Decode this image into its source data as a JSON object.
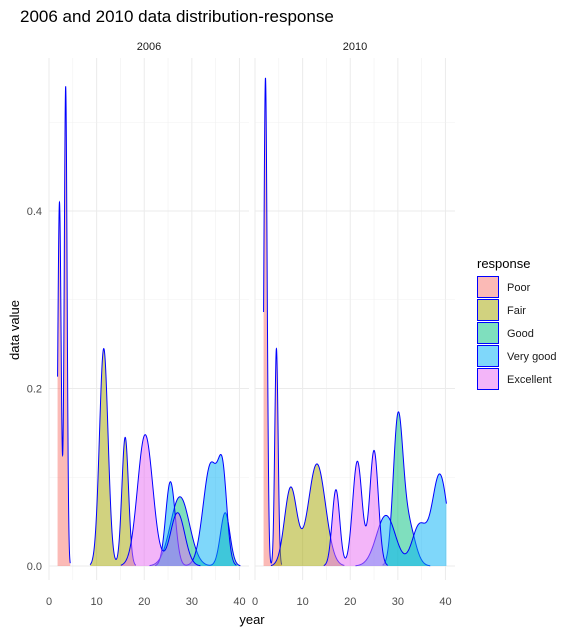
{
  "chart_data": {
    "type": "area",
    "title": "2006 and 2010 data distribution-response",
    "xlabel": "year",
    "ylabel": "data value",
    "xlim": [
      0,
      42
    ],
    "ylim": [
      0,
      0.55
    ],
    "x_ticks": [
      0,
      10,
      20,
      30,
      40
    ],
    "y_ticks": [
      0.0,
      0.2,
      0.4
    ],
    "grid": true,
    "legend": {
      "title": "response",
      "placement": "right",
      "outline": "#0000ff"
    },
    "categories": [
      "Poor",
      "Fair",
      "Good",
      "Very good",
      "Excellent"
    ],
    "colors": {
      "Poor": "#f8766d",
      "Fair": "#a3a500",
      "Good": "#00bf7d",
      "Very good": "#00b0f6",
      "Excellent": "#e76bf3"
    },
    "panels": [
      {
        "label": "2006",
        "series": [
          {
            "name": "Poor",
            "peaks": [
              [
                2.2,
                0.41,
                0.35
              ],
              [
                3.5,
                0.54,
                0.3
              ]
            ]
          },
          {
            "name": "Fair",
            "peaks": [
              [
                11.5,
                0.245,
                0.9
              ],
              [
                16,
                0.145,
                0.7
              ]
            ]
          },
          {
            "name": "Good",
            "peaks": [
              [
                27.5,
                0.078,
                2.0
              ],
              [
                37,
                0.06,
                1.0
              ]
            ]
          },
          {
            "name": "Very good",
            "peaks": [
              [
                25.5,
                0.095,
                1.0
              ],
              [
                34,
                0.115,
                1.6
              ],
              [
                36.5,
                0.085,
                0.9
              ]
            ]
          },
          {
            "name": "Excellent",
            "peaks": [
              [
                20.2,
                0.148,
                1.6
              ],
              [
                27,
                0.06,
                1.5
              ]
            ]
          }
        ]
      },
      {
        "label": "2010",
        "series": [
          {
            "name": "Poor",
            "peaks": [
              [
                2.2,
                0.55,
                0.35
              ],
              [
                4.5,
                0.245,
                0.35
              ]
            ]
          },
          {
            "name": "Fair",
            "peaks": [
              [
                7.5,
                0.088,
                1.3
              ],
              [
                13,
                0.115,
                1.8
              ]
            ]
          },
          {
            "name": "Good",
            "peaks": [
              [
                30,
                0.152,
                1.0
              ],
              [
                32,
                0.05,
                1.5
              ]
            ]
          },
          {
            "name": "Very good",
            "peaks": [
              [
                27.5,
                0.057,
                2.0
              ],
              [
                34.5,
                0.045,
                1.5
              ],
              [
                38.8,
                0.103,
                1.6
              ]
            ]
          },
          {
            "name": "Excellent",
            "peaks": [
              [
                17,
                0.086,
                0.8
              ],
              [
                21.5,
                0.118,
                1.0
              ],
              [
                25,
                0.13,
                0.9
              ]
            ]
          }
        ]
      }
    ]
  }
}
